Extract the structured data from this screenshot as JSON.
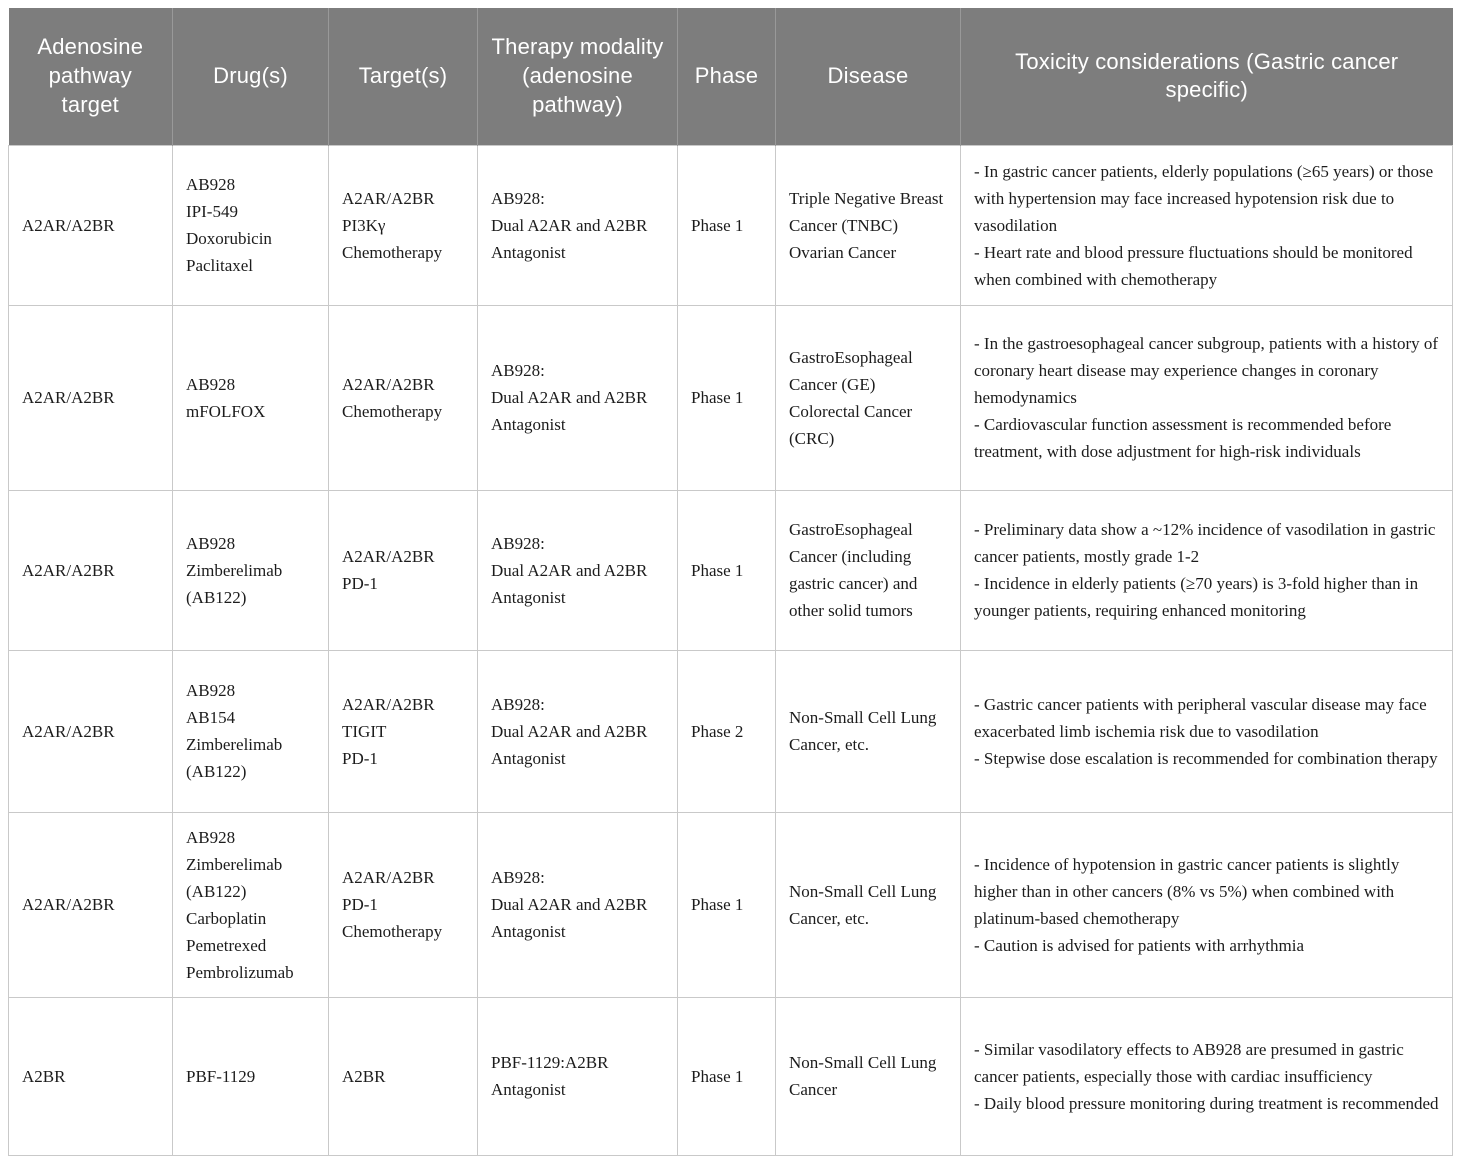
{
  "table": {
    "columns": [
      "Adenosine pathway target",
      "Drug(s)",
      "Target(s)",
      "Therapy modality (adenosine pathway)",
      "Phase",
      "Disease",
      "Toxicity considerations (Gastric cancer specific)"
    ],
    "rows": [
      {
        "adenosine_target": "A2AR/A2BR",
        "drugs": [
          "AB928",
          "IPI-549",
          "Doxorubicin",
          "Paclitaxel"
        ],
        "targets": [
          "A2AR/A2BR",
          "PI3Kγ",
          "Chemotherapy"
        ],
        "therapy_modality": [
          "AB928:",
          "Dual A2AR and A2BR Antagonist"
        ],
        "phase": "Phase 1",
        "disease": [
          "Triple Negative Breast Cancer (TNBC)",
          "Ovarian Cancer"
        ],
        "toxicity": [
          "- In gastric cancer patients, elderly populations (≥65 years) or those with hypertension may face increased hypotension risk due to vasodilation",
          "- Heart rate and blood pressure fluctuations should be monitored when combined with chemotherapy"
        ]
      },
      {
        "adenosine_target": "A2AR/A2BR",
        "drugs": [
          "AB928",
          "mFOLFOX"
        ],
        "targets": [
          "A2AR/A2BR",
          "Chemotherapy"
        ],
        "therapy_modality": [
          "AB928:",
          "Dual A2AR and A2BR Antagonist"
        ],
        "phase": "Phase 1",
        "disease": [
          "GastroEsophageal Cancer (GE)",
          "Colorectal Cancer (CRC)"
        ],
        "toxicity": [
          "- In the gastroesophageal cancer subgroup, patients with a history of coronary heart disease may experience changes in coronary hemodynamics",
          "- Cardiovascular function assessment is recommended before treatment, with dose adjustment for high-risk individuals"
        ]
      },
      {
        "adenosine_target": "A2AR/A2BR",
        "drugs": [
          "AB928",
          "Zimberelimab (AB122)"
        ],
        "targets": [
          "A2AR/A2BR",
          "PD-1"
        ],
        "therapy_modality": [
          "AB928:",
          "Dual A2AR and A2BR Antagonist"
        ],
        "phase": "Phase 1",
        "disease": [
          "GastroEsophageal Cancer (including gastric cancer) and other solid tumors"
        ],
        "toxicity": [
          "- Preliminary data show a ~12% incidence of vasodilation in gastric cancer patients, mostly grade 1-2",
          "- Incidence in elderly patients (≥70 years) is 3-fold higher than in younger patients, requiring enhanced monitoring"
        ]
      },
      {
        "adenosine_target": "A2AR/A2BR",
        "drugs": [
          "AB928",
          "AB154",
          "Zimberelimab (AB122)"
        ],
        "targets": [
          "A2AR/A2BR",
          "TIGIT",
          "PD-1"
        ],
        "therapy_modality": [
          "AB928:",
          "Dual A2AR and A2BR Antagonist"
        ],
        "phase": "Phase 2",
        "disease": [
          "Non-Small Cell Lung Cancer, etc."
        ],
        "toxicity": [
          "- Gastric cancer patients with peripheral vascular disease may face exacerbated limb ischemia risk due to vasodilation",
          "- Stepwise dose escalation is recommended for combination therapy"
        ]
      },
      {
        "adenosine_target": "A2AR/A2BR",
        "drugs": [
          "AB928",
          "Zimberelimab (AB122)",
          "Carboplatin",
          "Pemetrexed",
          "Pembrolizumab"
        ],
        "targets": [
          "A2AR/A2BR",
          "PD-1",
          "Chemotherapy"
        ],
        "therapy_modality": [
          "AB928:",
          "Dual A2AR and A2BR Antagonist"
        ],
        "phase": "Phase 1",
        "disease": [
          "Non-Small Cell Lung Cancer, etc."
        ],
        "toxicity": [
          "- Incidence of hypotension in gastric cancer patients is slightly higher than in other cancers (8% vs 5%) when combined with platinum-based chemotherapy",
          "- Caution is advised for patients with arrhythmia"
        ]
      },
      {
        "adenosine_target": "A2BR",
        "drugs": [
          "PBF-1129"
        ],
        "targets": [
          "A2BR"
        ],
        "therapy_modality": [
          "PBF-1129:A2BR Antagonist"
        ],
        "phase": "Phase 1",
        "disease": [
          "Non-Small Cell Lung Cancer"
        ],
        "toxicity": [
          "- Similar vasodilatory effects to AB928 are presumed in gastric cancer patients, especially those with cardiac insufficiency",
          "- Daily blood pressure monitoring during treatment is recommended"
        ]
      }
    ],
    "colors": {
      "header_bg": "#7d7d7d",
      "header_text": "#ffffff",
      "body_text": "#1c1c1c",
      "grid_line": "#c9c9c9"
    }
  }
}
